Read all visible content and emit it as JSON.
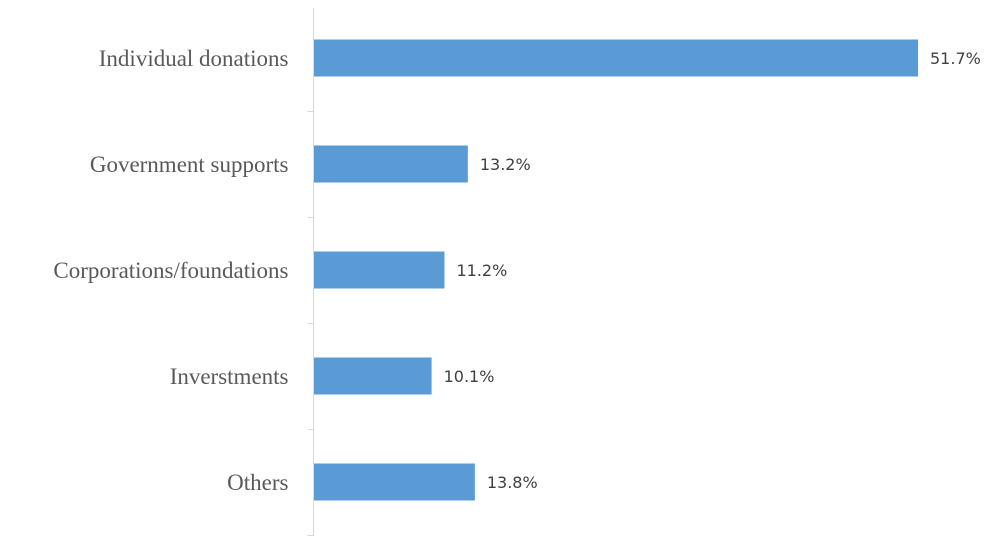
{
  "chart_data": {
    "type": "bar",
    "orientation": "horizontal",
    "categories": [
      "Individual donations",
      "Government supports",
      "Corporations/foundations",
      "Inverstments",
      "Others"
    ],
    "values": [
      51.7,
      13.2,
      11.2,
      10.1,
      13.8
    ],
    "value_labels": [
      "51.7%",
      "13.2%",
      "11.2%",
      "10.1%",
      "13.8%"
    ],
    "unit": "%",
    "xlim": [
      0,
      51.7
    ],
    "grid": false,
    "legend": "none",
    "colors": {
      "bar": "#5b9bd5",
      "axis": "#d9d9d9",
      "category_text": "#595959",
      "value_text": "#404040"
    }
  }
}
